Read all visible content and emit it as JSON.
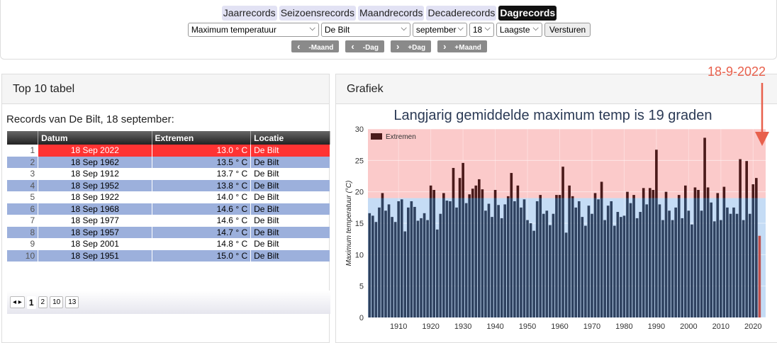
{
  "tabs": [
    {
      "label": "Jaarrecords"
    },
    {
      "label": "Seizoensrecords"
    },
    {
      "label": "Maandrecords"
    },
    {
      "label": "Decaderecords"
    },
    {
      "label": "Dagrecords",
      "active": true
    }
  ],
  "selects": [
    "Maximum temperatuur",
    "De Bilt",
    "september",
    "18",
    "Laagste"
  ],
  "submit": "Versturen",
  "nav": [
    "-Maand",
    "-Dag",
    "+Dag",
    "+Maand"
  ],
  "table_panel": {
    "title": "Top 10 tabel",
    "caption": "Records van De Bilt, 18 september:",
    "columns": [
      "Datum",
      "Extremen",
      "Locatie"
    ],
    "rows": [
      [
        1,
        "18 Sep 2022",
        "13.0 ° C",
        "De Bilt"
      ],
      [
        2,
        "18 Sep 1962",
        "13.5 ° C",
        "De Bilt"
      ],
      [
        3,
        "18 Sep 1912",
        "13.7 ° C",
        "De Bilt"
      ],
      [
        4,
        "18 Sep 1952",
        "13.8 ° C",
        "De Bilt"
      ],
      [
        5,
        "18 Sep 1922",
        "14.0 ° C",
        "De Bilt"
      ],
      [
        6,
        "18 Sep 1968",
        "14.6 ° C",
        "De Bilt"
      ],
      [
        7,
        "18 Sep 1977",
        "14.6 ° C",
        "De Bilt"
      ],
      [
        8,
        "18 Sep 1957",
        "14.7 ° C",
        "De Bilt"
      ],
      [
        9,
        "18 Sep 2001",
        "14.8 ° C",
        "De Bilt"
      ],
      [
        10,
        "18 Sep 1951",
        "15.0 ° C",
        "De Bilt"
      ]
    ],
    "pages": [
      1,
      2,
      10,
      13
    ]
  },
  "chart_panel": {
    "title": "Grafiek"
  },
  "chart_data": {
    "type": "bar",
    "title": "Langjarig gemiddelde maximum temp is 19 graden",
    "annotation": "18-9-2022",
    "ylabel": "Maximum temperatuur (°C)",
    "x": [
      1901,
      1902,
      1903,
      1904,
      1905,
      1906,
      1907,
      1908,
      1909,
      1910,
      1911,
      1912,
      1913,
      1914,
      1915,
      1916,
      1917,
      1918,
      1919,
      1920,
      1921,
      1922,
      1923,
      1924,
      1925,
      1926,
      1927,
      1928,
      1929,
      1930,
      1931,
      1932,
      1933,
      1934,
      1935,
      1936,
      1937,
      1938,
      1939,
      1940,
      1941,
      1942,
      1943,
      1944,
      1945,
      1946,
      1947,
      1948,
      1949,
      1950,
      1951,
      1952,
      1953,
      1954,
      1955,
      1956,
      1957,
      1958,
      1959,
      1960,
      1961,
      1962,
      1963,
      1964,
      1965,
      1966,
      1967,
      1968,
      1969,
      1970,
      1971,
      1972,
      1973,
      1974,
      1975,
      1976,
      1977,
      1978,
      1979,
      1980,
      1981,
      1982,
      1983,
      1984,
      1985,
      1986,
      1987,
      1988,
      1989,
      1990,
      1991,
      1992,
      1993,
      1994,
      1995,
      1996,
      1997,
      1998,
      1999,
      2000,
      2001,
      2002,
      2003,
      2004,
      2005,
      2006,
      2007,
      2008,
      2009,
      2010,
      2011,
      2012,
      2013,
      2014,
      2015,
      2016,
      2017,
      2018,
      2019,
      2020,
      2021,
      2022
    ],
    "series": [
      {
        "name": "Extremen",
        "color": "#4a1a1a",
        "base_color": "#2f4260",
        "values": [
          16.6,
          16.2,
          15.2,
          17.5,
          19.8,
          17.0,
          18.0,
          16.0,
          15.2,
          18.5,
          18.8,
          13.7,
          17.5,
          18.5,
          17.6,
          15.4,
          15.8,
          16.6,
          15.5,
          21.0,
          20.3,
          14.0,
          16.5,
          19.8,
          18.6,
          18.5,
          23.8,
          17.5,
          22.2,
          24.6,
          18.2,
          19.6,
          20.5,
          21.0,
          22.0,
          20.4,
          17.0,
          18.1,
          16.0,
          20.3,
          17.9,
          15.8,
          18.0,
          19.3,
          23.0,
          18.5,
          21.0,
          17.5,
          18.8,
          15.5,
          15.0,
          13.8,
          18.5,
          19.5,
          16.5,
          17.0,
          14.7,
          16.5,
          19.5,
          19.5,
          24.0,
          13.5,
          21.0,
          19.3,
          17.5,
          18.5,
          16.0,
          14.6,
          17.8,
          16.5,
          19.8,
          18.8,
          21.6,
          15.5,
          17.8,
          18.5,
          14.6,
          16.8,
          16.0,
          16.2,
          20.0,
          18.2,
          19.5,
          15.8,
          16.8,
          20.6,
          18.0,
          20.6,
          20.3,
          26.7,
          18.0,
          15.5,
          20.0,
          17.0,
          15.5,
          17.5,
          19.5,
          15.8,
          21.0,
          17.0,
          14.8,
          20.7,
          20.3,
          17.0,
          28.6,
          20.7,
          18.3,
          15.3,
          19.8,
          15.5,
          20.8,
          17.5,
          16.5,
          17.5,
          16.5,
          25.2,
          15.5,
          24.9,
          16.5,
          21.2,
          22.2,
          13.0
        ]
      }
    ],
    "threshold": 19,
    "below_color": "#c5dcf5",
    "above_color": "#fbcaca",
    "highlight": 2022,
    "highlight_color": "#c0504d",
    "annotation_color": "#e8604c",
    "xlim": [
      1900.5,
      2023.9
    ],
    "ylim": [
      0,
      30
    ],
    "xticks": [
      1910,
      1920,
      1930,
      1940,
      1950,
      1960,
      1970,
      1980,
      1990,
      2000,
      2010,
      2020
    ],
    "yticks": [
      0,
      5,
      10,
      15,
      20,
      25,
      30
    ],
    "grid": true
  }
}
